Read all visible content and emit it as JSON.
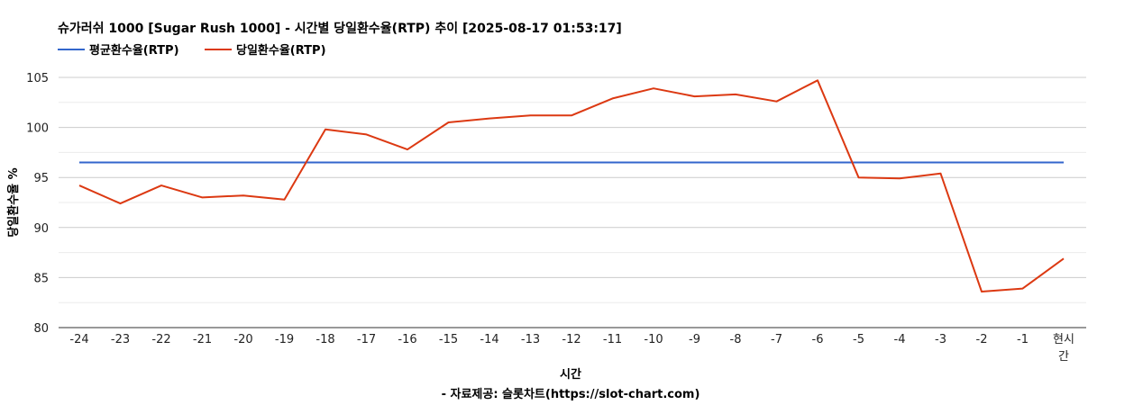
{
  "chart_data": {
    "type": "line",
    "title": "슈가러쉬 1000 [Sugar Rush 1000] - 시간별 당일환수율(RTP) 추이 [2025-08-17 01:53:17]",
    "xlabel": "시간",
    "xlabel_sub": "- 자료제공: 슬롯차트(https://slot-chart.com)",
    "ylabel": "당일환수율 %",
    "categories": [
      "-24",
      "-23",
      "-22",
      "-21",
      "-20",
      "-19",
      "-18",
      "-17",
      "-16",
      "-15",
      "-14",
      "-13",
      "-12",
      "-11",
      "-10",
      "-9",
      "-8",
      "-7",
      "-6",
      "-5",
      "-4",
      "-3",
      "-2",
      "-1",
      "현시간"
    ],
    "ylim": [
      80,
      105
    ],
    "yticks": [
      80,
      85,
      90,
      95,
      100,
      105
    ],
    "grid": true,
    "legend_position": "top-left",
    "series": [
      {
        "name": "평균환수율(RTP)",
        "color": "#3366cc",
        "values": [
          96.5,
          96.5,
          96.5,
          96.5,
          96.5,
          96.5,
          96.5,
          96.5,
          96.5,
          96.5,
          96.5,
          96.5,
          96.5,
          96.5,
          96.5,
          96.5,
          96.5,
          96.5,
          96.5,
          96.5,
          96.5,
          96.5,
          96.5,
          96.5,
          96.5
        ]
      },
      {
        "name": "당일환수율(RTP)",
        "color": "#dc3912",
        "values": [
          94.2,
          92.4,
          94.2,
          93.0,
          93.2,
          92.8,
          99.8,
          99.3,
          97.8,
          100.5,
          100.9,
          101.2,
          101.2,
          102.9,
          103.9,
          103.1,
          103.3,
          102.6,
          104.7,
          95.0,
          94.9,
          95.4,
          83.6,
          83.9,
          86.9
        ]
      }
    ]
  }
}
